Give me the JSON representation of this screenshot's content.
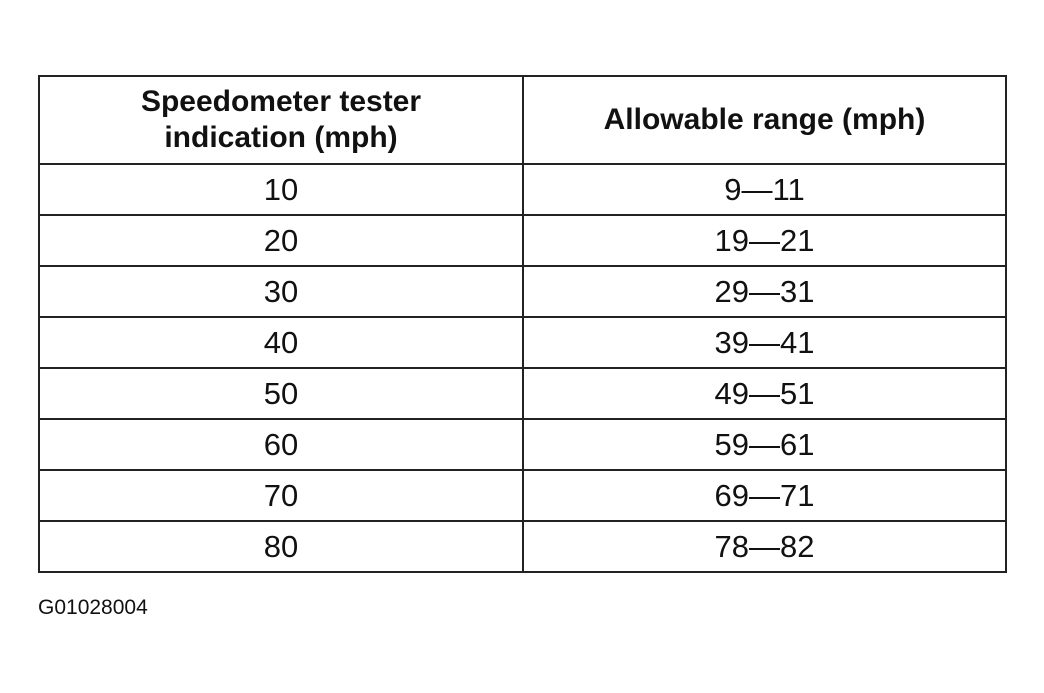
{
  "table": {
    "header": [
      "Speedometer tester indication (mph)",
      "Allowable range (mph)"
    ],
    "rows": [
      [
        "10",
        "9—11"
      ],
      [
        "20",
        "19—21"
      ],
      [
        "30",
        "29—31"
      ],
      [
        "40",
        "39—41"
      ],
      [
        "50",
        "49—51"
      ],
      [
        "60",
        "59—61"
      ],
      [
        "70",
        "69—71"
      ],
      [
        "80",
        "78—82"
      ]
    ]
  },
  "figure_id": "G01028004"
}
